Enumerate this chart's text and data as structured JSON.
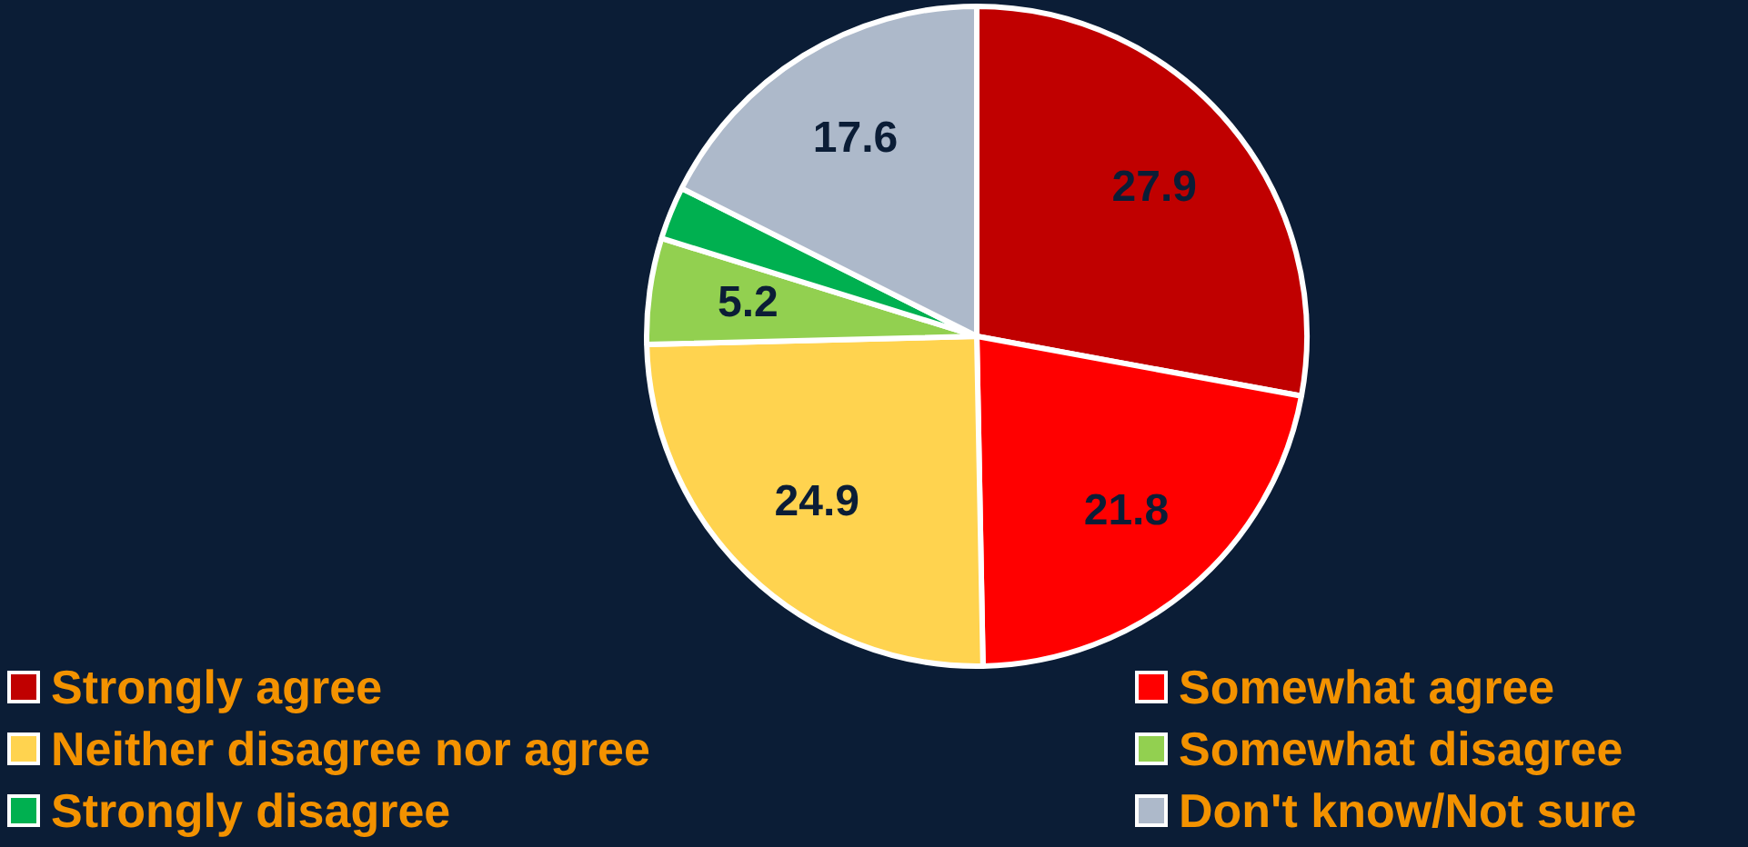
{
  "chart_data": {
    "type": "pie",
    "categories": [
      "Strongly agree",
      "Somewhat agree",
      "Neither disagree nor agree",
      "Somewhat disagree",
      "Strongly disagree",
      "Don't know/Not sure"
    ],
    "values": [
      27.9,
      21.8,
      24.9,
      5.2,
      2.6,
      17.6
    ],
    "value_labels": [
      "27.9",
      "21.8",
      "24.9",
      "5.2",
      null,
      "17.6"
    ],
    "colors": [
      "#c00000",
      "#ff0000",
      "#ffd34f",
      "#92d050",
      "#00b050",
      "#adb9ca"
    ],
    "legend": "bottom"
  }
}
